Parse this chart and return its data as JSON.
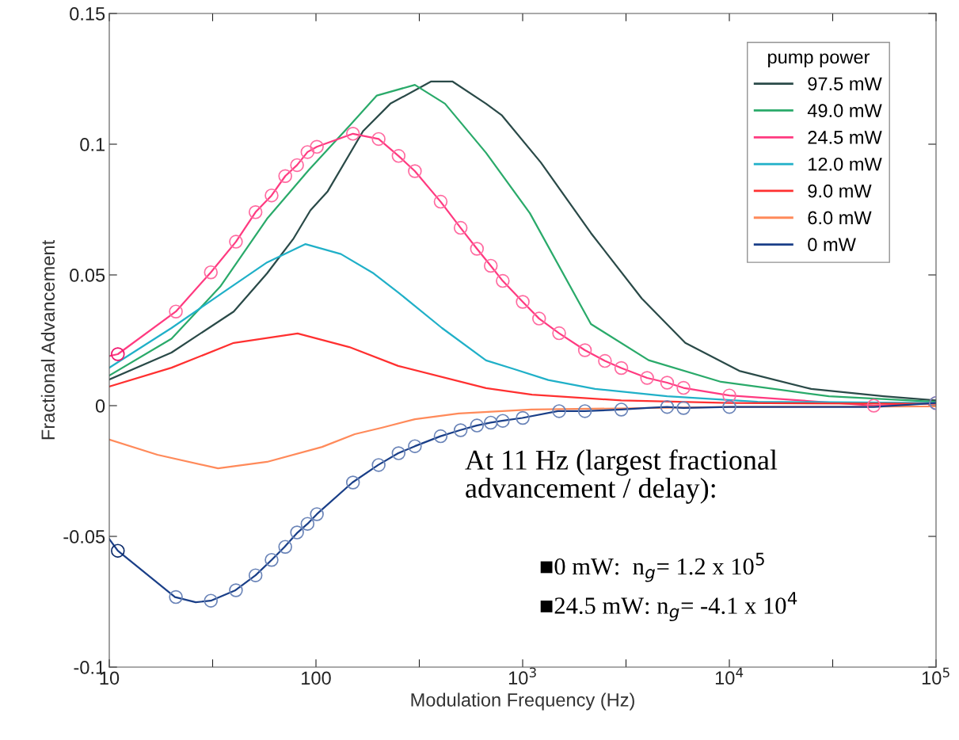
{
  "chart_data": {
    "type": "line",
    "xlabel": "Modulation Frequency (Hz)",
    "ylabel": "Fractional Advancement",
    "legend_title": "pump power",
    "legend": "top right",
    "log": "x",
    "grid": false,
    "line_style": "solid",
    "xlim": [
      10,
      100000
    ],
    "ylim": [
      -0.1,
      0.15
    ],
    "xticks": [
      10,
      {
        "value": 31.6228,
        "label": null
      },
      100,
      {
        "value": 316.228,
        "label": null
      },
      {
        "value": 1000,
        "label": "10$^{3}$"
      },
      {
        "value": 3162.28,
        "label": null
      },
      {
        "value": 10000,
        "label": "10$^{4}$"
      },
      {
        "value": 31622.8,
        "label": null
      },
      {
        "value": 100000,
        "label": "10$^{5}$"
      }
    ],
    "yticks": [
      {
        "value": -0.1,
        "label": "-0.1"
      },
      {
        "value": -0.05,
        "label": "-0.05"
      },
      0,
      0.05,
      0.1,
      0.15
    ],
    "series": [
      {
        "name": "97.5 mW",
        "color": "#2a4a48",
        "x": [
          10,
          20,
          40,
          58,
          78,
          94,
          114,
          169,
          229,
          361,
          457,
          665,
          794,
          1225,
          2140,
          3770,
          6120,
          11170,
          24900,
          55800,
          100000
        ],
        "values": [
          0.01,
          0.0203,
          0.036,
          0.0506,
          0.064,
          0.0747,
          0.082,
          0.105,
          0.1155,
          0.124,
          0.124,
          0.1155,
          0.111,
          0.093,
          0.066,
          0.041,
          0.024,
          0.0133,
          0.0064,
          0.0036,
          0.002
        ]
      },
      {
        "name": "49.0 mW",
        "color": "#2aaa6a",
        "x": [
          10,
          20,
          34.4,
          58,
          92,
          145,
          197,
          301,
          421,
          665,
          1084,
          2140,
          4070,
          9120,
          30300,
          100000
        ],
        "values": [
          0.0115,
          0.0256,
          0.0455,
          0.0715,
          0.09,
          0.107,
          0.1186,
          0.1227,
          0.1155,
          0.0967,
          0.0736,
          0.0312,
          0.0174,
          0.0091,
          0.0036,
          0.0015
        ]
      },
      {
        "name": "24.5 mW",
        "color": "#ff3a80",
        "x": [
          10,
          11,
          21,
          31,
          41,
          51,
          61,
          71,
          81,
          91,
          101,
          151,
          201,
          251,
          301,
          401,
          501,
          601,
          701,
          801,
          1001,
          1201,
          1501,
          2001,
          2501,
          3001,
          4001,
          5001,
          6001,
          10001,
          50001,
          100000
        ],
        "values": [
          0.019,
          0.0197,
          0.036,
          0.051,
          0.0627,
          0.074,
          0.0804,
          0.0878,
          0.092,
          0.097,
          0.099,
          0.104,
          0.102,
          0.0955,
          0.0897,
          0.078,
          0.068,
          0.06,
          0.0535,
          0.0477,
          0.0397,
          0.0333,
          0.0277,
          0.0212,
          0.0171,
          0.0144,
          0.0106,
          0.0088,
          0.0068,
          0.0039,
          0.0,
          0.001
        ]
      },
      {
        "name": "12.0 mW",
        "color": "#20b0c8",
        "x": [
          10,
          20,
          35.5,
          58,
          89,
          132,
          190,
          250,
          407,
          665,
          900,
          1330,
          2240,
          5000,
          13700,
          100000
        ],
        "values": [
          0.0145,
          0.0297,
          0.0433,
          0.0548,
          0.0618,
          0.058,
          0.0506,
          0.0433,
          0.0297,
          0.0173,
          0.0141,
          0.0098,
          0.0064,
          0.0036,
          0.0015,
          0.001
        ]
      },
      {
        "name": "9.0 mW",
        "color": "#ff3030",
        "x": [
          10,
          20,
          40,
          81.5,
          145,
          250,
          665,
          1110,
          3000,
          10000,
          100000
        ],
        "values": [
          0.0073,
          0.0145,
          0.024,
          0.0276,
          0.0224,
          0.0152,
          0.0067,
          0.0042,
          0.002,
          0.001,
          0.0007
        ]
      },
      {
        "name": "6.0 mW",
        "color": "#ff8a5a",
        "x": [
          10,
          17.1,
          33.6,
          58,
          107,
          154,
          209,
          301,
          490,
          1100,
          10000,
          100000
        ],
        "values": [
          -0.013,
          -0.0188,
          -0.024,
          -0.0215,
          -0.0158,
          -0.0109,
          -0.0084,
          -0.0052,
          -0.003,
          -0.0015,
          -0.0005,
          -0.0003
        ]
      },
      {
        "name": "0 mW",
        "color": "#1a3f88",
        "x": [
          10,
          11,
          20.8,
          26.2,
          31,
          40.8,
          51,
          61,
          70.5,
          81.5,
          91,
          101,
          150,
          200,
          250,
          301,
          400,
          497,
          598,
          700,
          794,
          996,
          1480,
          2000,
          3000,
          4000,
          5000,
          6000,
          10000,
          50000,
          100000
        ],
        "values": [
          -0.051,
          -0.0555,
          -0.0732,
          -0.0752,
          -0.0746,
          -0.0706,
          -0.0649,
          -0.059,
          -0.054,
          -0.0485,
          -0.0452,
          -0.0415,
          -0.0294,
          -0.0227,
          -0.0182,
          -0.0155,
          -0.0117,
          -0.0094,
          -0.0076,
          -0.0065,
          -0.0058,
          -0.0047,
          -0.0021,
          -0.0021,
          -0.0015,
          -0.0009,
          -0.0005,
          -0.0009,
          -0.0005,
          -0.0005,
          0.001
        ]
      },
      {
        "type": "scatter",
        "marker": "circle",
        "color": "#ff6aa0",
        "x": [
          21,
          31,
          41,
          51,
          61,
          71,
          81,
          91,
          101,
          151,
          201,
          251,
          301,
          401,
          501,
          601,
          701,
          801,
          1001,
          1201,
          1501,
          2001,
          2501,
          3001,
          4001,
          5001,
          6001,
          10001,
          50001,
          100000
        ],
        "values": [
          0.036,
          0.051,
          0.0627,
          0.074,
          0.0804,
          0.0878,
          0.092,
          0.097,
          0.099,
          0.104,
          0.102,
          0.0955,
          0.0897,
          0.078,
          0.068,
          0.06,
          0.0535,
          0.0477,
          0.0397,
          0.0333,
          0.0277,
          0.0212,
          0.0171,
          0.0144,
          0.0106,
          0.0088,
          0.0068,
          0.0039,
          0.0,
          0.001
        ]
      },
      {
        "type": "scatter",
        "marker": "circle",
        "color": "#6a84b8",
        "x": [
          21,
          31,
          41,
          51,
          61,
          71,
          81,
          91,
          101,
          151,
          201,
          251,
          301,
          401,
          501,
          601,
          701,
          801,
          1001,
          1501,
          2001,
          3001,
          5001,
          6001,
          10001,
          100000
        ],
        "values": [
          -0.0732,
          -0.0746,
          -0.0706,
          -0.0649,
          -0.059,
          -0.054,
          -0.0485,
          -0.0452,
          -0.0415,
          -0.0294,
          -0.0227,
          -0.0182,
          -0.0155,
          -0.0117,
          -0.0094,
          -0.0076,
          -0.0065,
          -0.0058,
          -0.0047,
          -0.0021,
          -0.0021,
          -0.0015,
          -0.0005,
          -0.0009,
          -0.0005,
          0.001
        ]
      },
      {
        "type": "scatter",
        "marker": "circle",
        "color": "#f0106a",
        "x": [
          11
        ],
        "values": [
          0.0197
        ]
      },
      {
        "type": "scatter",
        "marker": "circle",
        "color": "#0a2a6a",
        "x": [
          11
        ],
        "values": [
          -0.0555
        ]
      }
    ],
    "annotations": [
      "At 11 Hz (largest fractional\nadvancement / delay):",
      "■0 mW:  n$_{g}$= 1.2 x 10$^{5}$",
      "■24.5 mW: n$_{g}$= -4.1 x 10$^{4}$"
    ]
  }
}
